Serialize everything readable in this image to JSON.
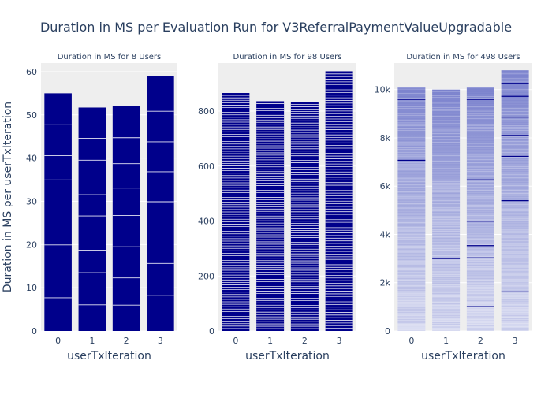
{
  "chart_data": {
    "type": "bar",
    "title": "Duration in MS per Evaluation Run for V3ReferralPaymentValueUpgradable",
    "ylabel": "Duration in MS per userTxIteration",
    "colors": {
      "bar": "#00008b",
      "bar_lighter": "#7f86cf",
      "segment_line": "#ffffff",
      "plot_bg": "#eeeeee"
    },
    "subplots": [
      {
        "title": "Duration in MS for 8 Users",
        "xlabel": "userTxIteration",
        "categories": [
          "0",
          "1",
          "2",
          "3"
        ],
        "values": [
          55,
          51.7,
          52,
          59
        ],
        "ylim": [
          0,
          62
        ],
        "yticks": [
          0,
          10,
          20,
          30,
          40,
          50,
          60
        ],
        "ytick_labels": [
          "0",
          "10",
          "20",
          "30",
          "40",
          "50",
          "60"
        ],
        "segments_per_bar": 8,
        "style": "solid"
      },
      {
        "title": "Duration in MS for 98 Users",
        "xlabel": "userTxIteration",
        "categories": [
          "0",
          "1",
          "2",
          "3"
        ],
        "values": [
          866,
          836,
          833,
          945
        ],
        "ylim": [
          0,
          975
        ],
        "yticks": [
          0,
          200,
          400,
          600,
          800
        ],
        "ytick_labels": [
          "0",
          "200",
          "400",
          "600",
          "800"
        ],
        "segments_per_bar": 98,
        "style": "solid"
      },
      {
        "title": "Duration in MS for 498 Users",
        "xlabel": "userTxIteration",
        "categories": [
          "0",
          "1",
          "2",
          "3"
        ],
        "values": [
          10100,
          10000,
          10100,
          10800
        ],
        "ylim": [
          0,
          11100
        ],
        "yticks": [
          0,
          2000,
          4000,
          6000,
          8000,
          10000
        ],
        "ytick_labels": [
          "0",
          "2k",
          "4k",
          "6k",
          "8k",
          "10k"
        ],
        "segments_per_bar": 498,
        "style": "gradient"
      }
    ]
  }
}
